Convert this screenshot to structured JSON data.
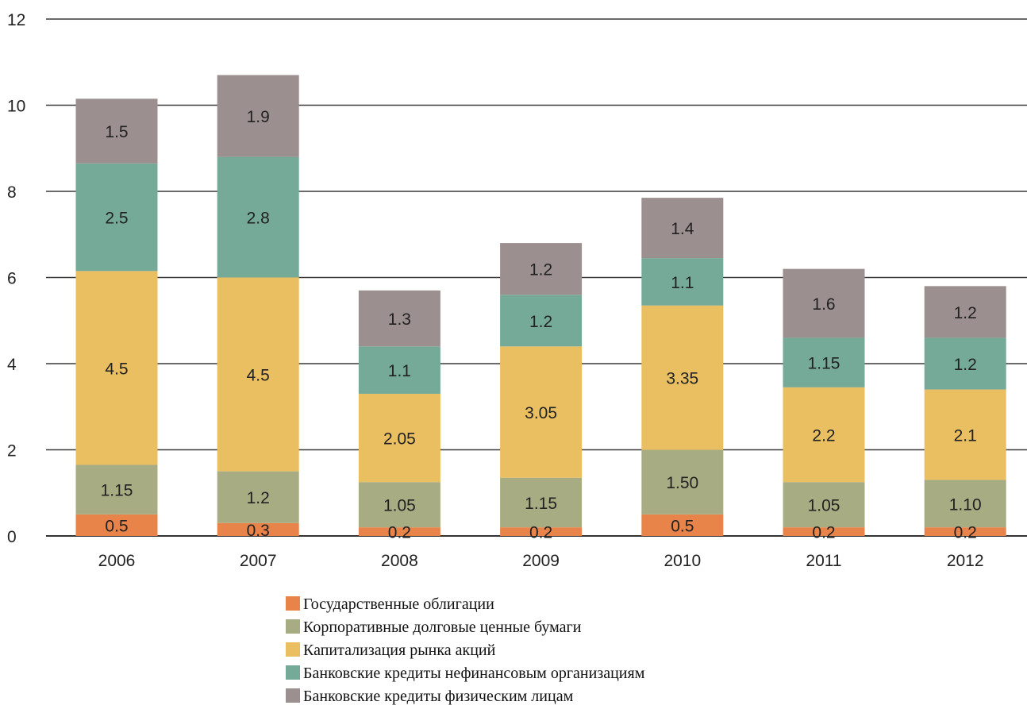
{
  "chart_data": {
    "type": "bar",
    "stacked": true,
    "categories": [
      "2006",
      "2007",
      "2008",
      "2009",
      "2010",
      "2011",
      "2012"
    ],
    "ylim": [
      0,
      12
    ],
    "yticks": [
      0,
      2,
      4,
      6,
      8,
      10,
      12
    ],
    "grid": true,
    "legend_position": "bottom",
    "series": [
      {
        "name": "Государственные облигации",
        "color": "#e8844a",
        "values": [
          0.5,
          0.3,
          0.2,
          0.2,
          0.5,
          0.2,
          0.2
        ],
        "labels": [
          "0.5",
          "0.3",
          "0.2",
          "0.2",
          "0.5",
          "0.2",
          "0.2"
        ]
      },
      {
        "name": "Корпоративные долговые ценные бумаги",
        "color": "#a8ac82",
        "values": [
          1.15,
          1.2,
          1.05,
          1.15,
          1.5,
          1.05,
          1.1
        ],
        "labels": [
          "1.15",
          "1.2",
          "1.05",
          "1.15",
          "1.50",
          "1.05",
          "1.10"
        ]
      },
      {
        "name": "Капитализация рынка акций",
        "color": "#e9bf62",
        "values": [
          4.5,
          4.5,
          2.05,
          3.05,
          3.35,
          2.2,
          2.1
        ],
        "labels": [
          "4.5",
          "4.5",
          "2.05",
          "3.05",
          "3.35",
          "2.2",
          "2.1"
        ]
      },
      {
        "name": "Банковские кредиты нефинансовым организациям",
        "color": "#76aa98",
        "values": [
          2.5,
          2.8,
          1.1,
          1.2,
          1.1,
          1.15,
          1.2
        ],
        "labels": [
          "2.5",
          "2.8",
          "1.1",
          "1.2",
          "1.1",
          "1.15",
          "1.2"
        ]
      },
      {
        "name": "Банковские кредиты физическим лицам",
        "color": "#9c8f8f",
        "values": [
          1.5,
          1.9,
          1.3,
          1.2,
          1.4,
          1.6,
          1.2
        ],
        "labels": [
          "1.5",
          "1.9",
          "1.3",
          "1.2",
          "1.4",
          "1.6",
          "1.2"
        ]
      }
    ]
  }
}
